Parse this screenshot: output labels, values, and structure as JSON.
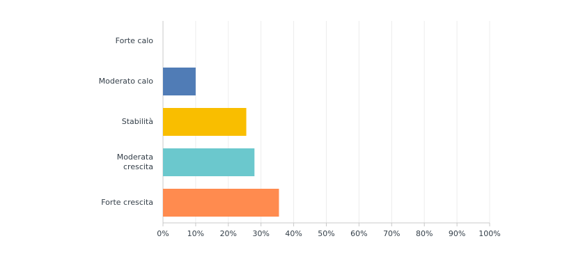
{
  "chart_data": {
    "type": "bar",
    "orientation": "horizontal",
    "categories": [
      "Forte calo",
      "Moderato calo",
      "Stabilità",
      "Moderata crescita",
      "Forte crescita"
    ],
    "values": [
      0,
      10,
      25.5,
      28,
      35.5
    ],
    "colors": [
      null,
      "#507cb6",
      "#f9be00",
      "#6bc8cd",
      "#ff8b4f"
    ],
    "xlim": [
      0,
      100
    ],
    "xticks": [
      {
        "value": 0,
        "label": "0%"
      },
      {
        "value": 10,
        "label": "10%"
      },
      {
        "value": 20,
        "label": "20%"
      },
      {
        "value": 30,
        "label": "30%"
      },
      {
        "value": 40,
        "label": "40%"
      },
      {
        "value": 50,
        "label": "50%"
      },
      {
        "value": 60,
        "label": "60%"
      },
      {
        "value": 70,
        "label": "70%"
      },
      {
        "value": 80,
        "label": "80%"
      },
      {
        "value": 90,
        "label": "90%"
      },
      {
        "value": 100,
        "label": "100%"
      }
    ],
    "grid": true
  }
}
